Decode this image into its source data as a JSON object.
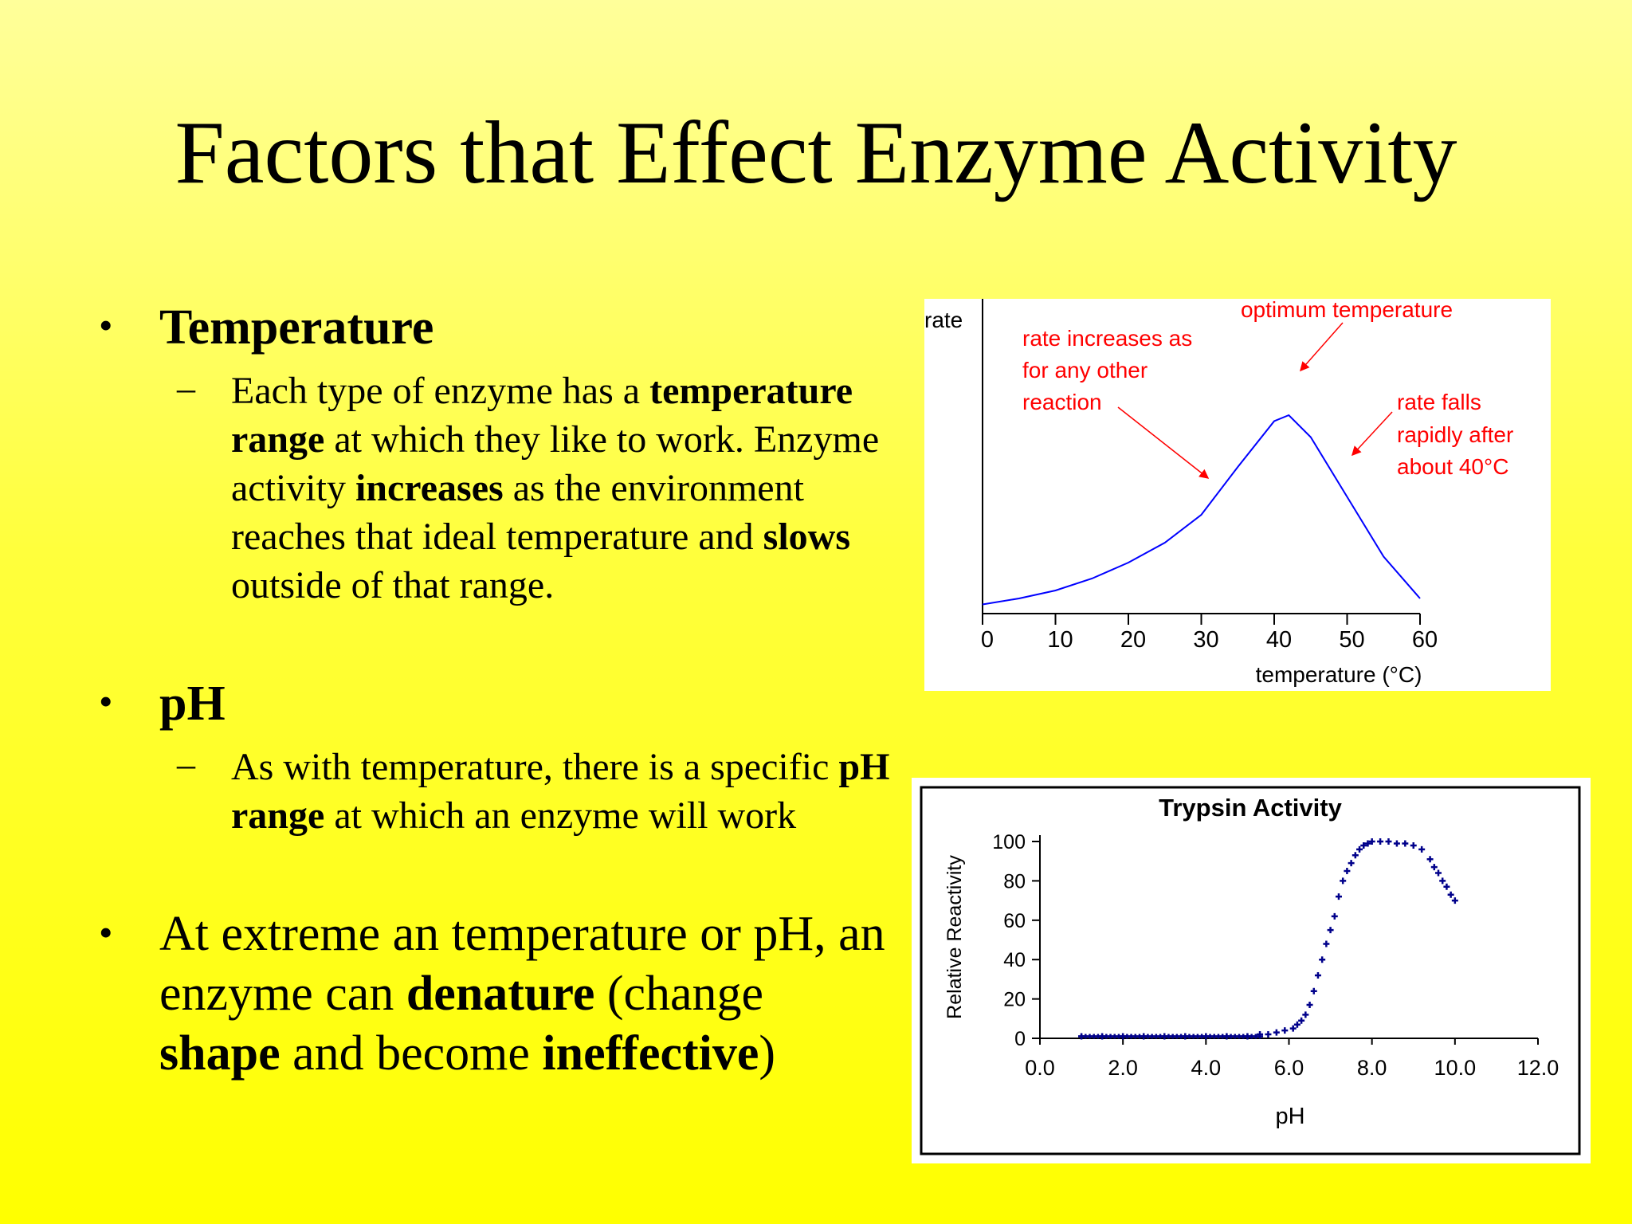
{
  "title": "Factors that Effect Enzyme Activity",
  "bullets": {
    "temperature": {
      "heading": "Temperature",
      "text": [
        {
          "t": "Each type of enzyme has a ",
          "b": false
        },
        {
          "t": "temperature range",
          "b": true
        },
        {
          "t": " at which they like to work. Enzyme activity ",
          "b": false
        },
        {
          "t": "increases",
          "b": true
        },
        {
          "t": " as the environment reaches that ideal temperature and ",
          "b": false
        },
        {
          "t": "slows",
          "b": true
        },
        {
          "t": " outside of that range.",
          "b": false
        }
      ]
    },
    "ph": {
      "heading": "pH",
      "text": [
        {
          "t": "As with temperature, there is a specific ",
          "b": false
        },
        {
          "t": "pH range",
          "b": true
        },
        {
          "t": " at which an enzyme will work",
          "b": false
        }
      ]
    },
    "extreme": {
      "text": [
        {
          "t": "At extreme an temperature or pH, an enzyme can ",
          "b": false
        },
        {
          "t": "denature",
          "b": true
        },
        {
          "t": " (change ",
          "b": false
        },
        {
          "t": "shape",
          "b": true
        },
        {
          "t": " and become ",
          "b": false
        },
        {
          "t": "ineffective",
          "b": true
        },
        {
          "t": ")",
          "b": false
        }
      ]
    }
  },
  "colors": {
    "annotation": "#ff0000",
    "temp_curve": "#0000ff",
    "trypsin_points": "#00008b"
  },
  "chart_data": [
    {
      "type": "line",
      "title": "",
      "xlabel": "temperature (°C)",
      "ylabel": "rate",
      "xlim": [
        0,
        60
      ],
      "ylim": [
        0,
        100
      ],
      "x_ticks": [
        "0",
        "10",
        "20",
        "30",
        "40",
        "50",
        "60"
      ],
      "y_ticks": [],
      "series": [
        {
          "x": [
            0,
            5,
            10,
            15,
            20,
            25,
            30,
            35,
            40,
            42,
            45,
            50,
            55,
            60
          ],
          "y": [
            1,
            4,
            8,
            14,
            22,
            32,
            46,
            70,
            93,
            96,
            85,
            55,
            25,
            4
          ]
        }
      ],
      "annotations": [
        "rate increases as",
        "for any other",
        "reaction",
        "optimum temperature",
        "rate falls",
        "rapidly after",
        "about 40°C"
      ]
    },
    {
      "type": "scatter",
      "title": "Trypsin Activity",
      "xlabel": "pH",
      "ylabel": "Relative Reactivity",
      "xlim": [
        0,
        12
      ],
      "ylim": [
        0,
        100
      ],
      "x_ticks": [
        "0.0",
        "2.0",
        "4.0",
        "6.0",
        "8.0",
        "10.0",
        "12.0"
      ],
      "y_ticks": [
        "0",
        "20",
        "40",
        "60",
        "80",
        "100"
      ],
      "series": [
        {
          "x": [
            1.0,
            1.5,
            2.0,
            2.5,
            3.0,
            3.5,
            4.0,
            4.5,
            5.0,
            5.3,
            5.5,
            5.7,
            5.9,
            6.1,
            6.2,
            6.3,
            6.4,
            6.5,
            6.6,
            6.7,
            6.8,
            6.9,
            7.0,
            7.1,
            7.2,
            7.3,
            7.4,
            7.5,
            7.6,
            7.7,
            7.8,
            7.9,
            8.0,
            8.2,
            8.4,
            8.6,
            8.8,
            9.0,
            9.2,
            9.4,
            9.5,
            9.6,
            9.7,
            9.8,
            9.9,
            10.0
          ],
          "y": [
            1,
            1,
            1,
            1,
            1,
            1,
            1,
            1,
            1,
            2,
            2,
            3,
            4,
            5,
            7,
            9,
            12,
            17,
            24,
            32,
            40,
            48,
            55,
            62,
            72,
            80,
            85,
            89,
            93,
            96,
            98,
            99,
            100,
            100,
            100,
            99,
            99,
            98,
            96,
            91,
            87,
            84,
            80,
            77,
            73,
            70
          ]
        }
      ]
    }
  ]
}
